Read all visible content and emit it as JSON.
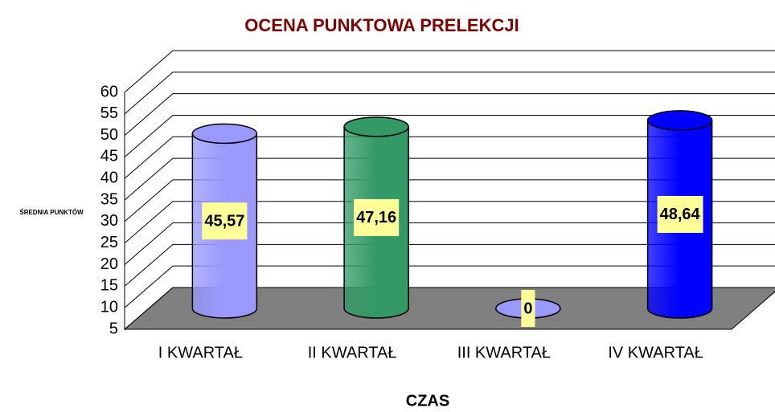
{
  "chart_data": {
    "type": "bar3d",
    "title": "OCENA PUNKTOWA PRELEKCJI",
    "y_label": "ŚREDNIA PUNKTÓW",
    "x_label": "CZAS",
    "categories": [
      "I KWARTAŁ",
      "II KWARTAŁ",
      "III KWARTAŁ",
      "IV KWARTAŁ"
    ],
    "values": [
      45.57,
      47.16,
      0,
      48.64
    ],
    "value_labels": [
      "45,57",
      "47,16",
      "0",
      "48,64"
    ],
    "colors": [
      "#9999ff",
      "#339966",
      "#9999ff",
      "#0000ff"
    ],
    "ylim": [
      5,
      60
    ],
    "yticks": [
      5,
      10,
      15,
      20,
      25,
      30,
      35,
      40,
      45,
      50,
      55,
      60
    ],
    "grid": true
  }
}
